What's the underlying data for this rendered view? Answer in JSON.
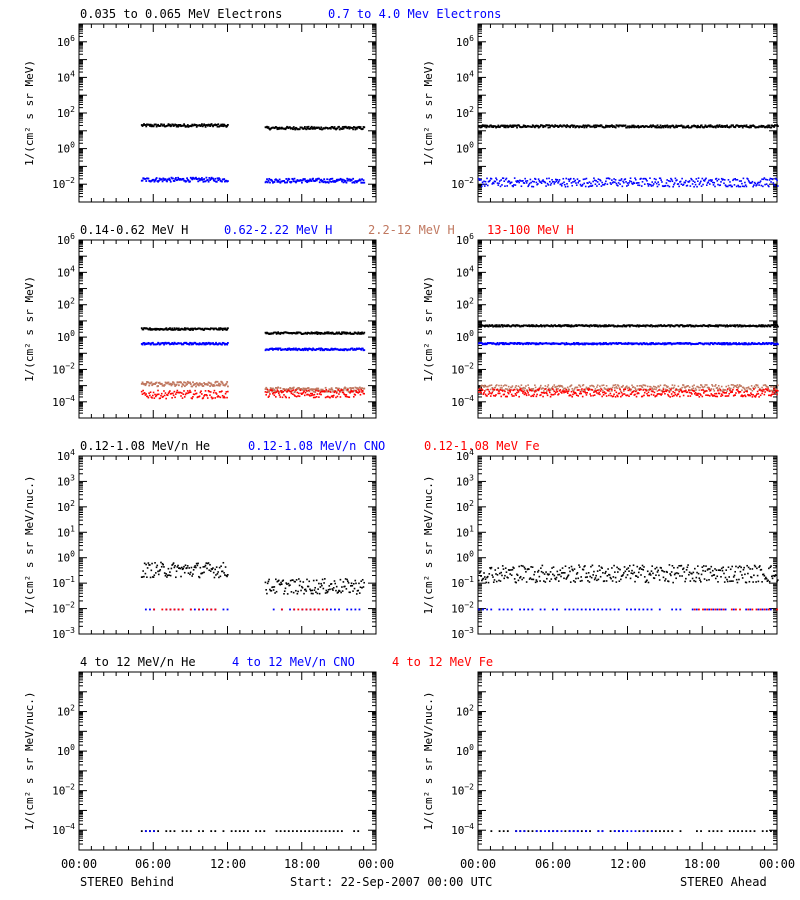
{
  "colors": {
    "black": "#000000",
    "blue": "#0000ff",
    "tan": "#c07860",
    "red": "#ff0000"
  },
  "footer": {
    "left": "STEREO Behind",
    "center": "Start: 22-Sep-2007 00:00 UTC",
    "right": "STEREO Ahead"
  },
  "xaxis": {
    "tick_labels": [
      "00:00",
      "06:00",
      "12:00",
      "18:00",
      "00:00"
    ],
    "range_hours": [
      0,
      24
    ]
  },
  "rows": [
    {
      "titles": [
        {
          "text": "0.035 to 0.065 MeV Electrons",
          "color": "#000000"
        },
        {
          "text": "0.7 to 4.0 Mev Electrons",
          "color": "#0000ff"
        }
      ],
      "ylabel": "1/(cm² s sr MeV)",
      "ylim_exp": [
        -3,
        7
      ],
      "yticks_exp": [
        6,
        4,
        2,
        0,
        -2
      ]
    },
    {
      "titles": [
        {
          "text": "0.14-0.62 MeV H",
          "color": "#000000"
        },
        {
          "text": "0.62-2.22 MeV H",
          "color": "#0000ff"
        },
        {
          "text": "2.2-12 MeV H",
          "color": "#c07860"
        },
        {
          "text": "13-100 MeV H",
          "color": "#ff0000"
        }
      ],
      "ylabel": "1/(cm² s sr MeV)",
      "ylim_exp": [
        -5,
        6
      ],
      "yticks_exp": [
        6,
        4,
        2,
        0,
        -2,
        -4
      ]
    },
    {
      "titles": [
        {
          "text": "0.12-1.08 MeV/n He",
          "color": "#000000"
        },
        {
          "text": "0.12-1.08 MeV/n CNO",
          "color": "#0000ff"
        },
        {
          "text": "0.12-1.08 MeV Fe",
          "color": "#ff0000"
        }
      ],
      "ylabel": "1/(cm² s sr MeV/nuc.)",
      "ylim_exp": [
        -3,
        4
      ],
      "yticks_exp": [
        4,
        3,
        2,
        1,
        0,
        -1,
        -2,
        -3
      ]
    },
    {
      "titles": [
        {
          "text": "4 to 12 MeV/n He",
          "color": "#000000"
        },
        {
          "text": "4 to 12 MeV/n CNO",
          "color": "#0000ff"
        },
        {
          "text": "4 to 12 MeV Fe",
          "color": "#ff0000"
        }
      ],
      "ylabel": "1/(cm² s sr MeV/nuc.)",
      "ylim_exp": [
        -5,
        4
      ],
      "yticks_exp": [
        2,
        0,
        -2,
        -4
      ]
    }
  ],
  "chart_data": [
    {
      "type": "scatter",
      "panel": "behind-electrons",
      "scale_y": "log",
      "series": [
        {
          "name": "0.035 to 0.065 MeV Electrons",
          "color": "#000000",
          "segments": [
            [
              5,
              12,
              1.35
            ],
            [
              15,
              23,
              1.2
            ]
          ],
          "noise": 0.08
        },
        {
          "name": "0.7 to 4.0 Mev Electrons",
          "color": "#0000ff",
          "segments": [
            [
              5,
              12,
              -1.7
            ],
            [
              15,
              23,
              -1.75
            ]
          ],
          "noise": 0.12
        }
      ]
    },
    {
      "type": "scatter",
      "panel": "ahead-electrons",
      "scale_y": "log",
      "series": [
        {
          "name": "0.035 to 0.065 MeV Electrons",
          "color": "#000000",
          "segments": [
            [
              0,
              24,
              1.3
            ]
          ],
          "noise": 0.07
        },
        {
          "name": "0.7 to 4.0 Mev Electrons",
          "color": "#0000ff",
          "segments": [
            [
              0,
              24,
              -1.85
            ]
          ],
          "noise": 0.25
        }
      ]
    },
    {
      "type": "scatter",
      "panel": "behind-protons",
      "scale_y": "log",
      "series": [
        {
          "name": "0.14-0.62 MeV H",
          "color": "#000000",
          "segments": [
            [
              5,
              12,
              0.55
            ],
            [
              15,
              23,
              0.3
            ]
          ],
          "noise": 0.06
        },
        {
          "name": "0.62-2.22 MeV H",
          "color": "#0000ff",
          "segments": [
            [
              5,
              12,
              -0.35
            ],
            [
              15,
              23,
              -0.7
            ]
          ],
          "noise": 0.06
        },
        {
          "name": "2.2-12 MeV H",
          "color": "#c07860",
          "segments": [
            [
              5,
              12,
              -2.85
            ],
            [
              15,
              23,
              -3.2
            ]
          ],
          "noise": 0.15
        },
        {
          "name": "13-100 MeV H",
          "color": "#ff0000",
          "segments": [
            [
              5,
              12,
              -3.5
            ],
            [
              15,
              23,
              -3.45
            ]
          ],
          "noise": 0.25
        }
      ]
    },
    {
      "type": "scatter",
      "panel": "ahead-protons",
      "scale_y": "log",
      "series": [
        {
          "name": "0.14-0.62 MeV H",
          "color": "#000000",
          "segments": [
            [
              0,
              24,
              0.75
            ]
          ],
          "noise": 0.05
        },
        {
          "name": "0.62-2.22 MeV H",
          "color": "#0000ff",
          "segments": [
            [
              0,
              24,
              -0.35
            ]
          ],
          "noise": 0.05
        },
        {
          "name": "2.2-12 MeV H",
          "color": "#c07860",
          "segments": [
            [
              0,
              24,
              -3.1
            ]
          ],
          "noise": 0.2
        },
        {
          "name": "13-100 MeV H",
          "color": "#ff0000",
          "segments": [
            [
              0,
              24,
              -3.4
            ]
          ],
          "noise": 0.25
        }
      ]
    },
    {
      "type": "scatter",
      "panel": "behind-heavy",
      "scale_y": "log",
      "series": [
        {
          "name": "0.12-1.08 MeV/n He",
          "color": "#000000",
          "segments": [
            [
              5,
              12,
              -0.45
            ],
            [
              15,
              23,
              -1.1
            ]
          ],
          "noise": 0.3
        },
        {
          "name": "0.12-1.08 MeV/n CNO",
          "color": "#0000ff",
          "segments": [
            [
              5,
              12,
              -2.0
            ],
            [
              15,
              23,
              -2.0
            ]
          ],
          "noise": 0.0
        },
        {
          "name": "0.12-1.08 MeV Fe",
          "color": "#ff0000",
          "segments": [
            [
              6,
              11,
              -2.0
            ],
            [
              16,
              20,
              -2.0
            ]
          ],
          "noise": 0.0
        }
      ]
    },
    {
      "type": "scatter",
      "panel": "ahead-heavy",
      "scale_y": "log",
      "series": [
        {
          "name": "0.12-1.08 MeV/n He",
          "color": "#000000",
          "segments": [
            [
              0,
              24,
              -0.6
            ]
          ],
          "noise": 0.35
        },
        {
          "name": "0.12-1.08 MeV/n CNO",
          "color": "#0000ff",
          "segments": [
            [
              0,
              24,
              -2.0
            ]
          ],
          "noise": 0.0
        },
        {
          "name": "0.12-1.08 MeV Fe",
          "color": "#ff0000",
          "segments": [
            [
              17,
              24,
              -2.0
            ]
          ],
          "noise": 0.0
        }
      ]
    },
    {
      "type": "scatter",
      "panel": "behind-high-energy",
      "scale_y": "log",
      "series": [
        {
          "name": "4 to 12 MeV/n He",
          "color": "#000000",
          "segments": [
            [
              5,
              23,
              -4.0
            ]
          ],
          "noise": 0.0
        },
        {
          "name": "4 to 12 MeV/n CNO",
          "color": "#0000ff",
          "segments": [
            [
              5,
              6,
              -4.0
            ]
          ],
          "noise": 0.0
        }
      ]
    },
    {
      "type": "scatter",
      "panel": "ahead-high-energy",
      "scale_y": "log",
      "series": [
        {
          "name": "4 to 12 MeV/n He",
          "color": "#000000",
          "segments": [
            [
              1,
              24,
              -4.0
            ]
          ],
          "noise": 0.0
        },
        {
          "name": "4 to 12 MeV/n CNO",
          "color": "#0000ff",
          "segments": [
            [
              3,
              14,
              -4.0
            ]
          ],
          "noise": 0.0
        }
      ]
    }
  ]
}
